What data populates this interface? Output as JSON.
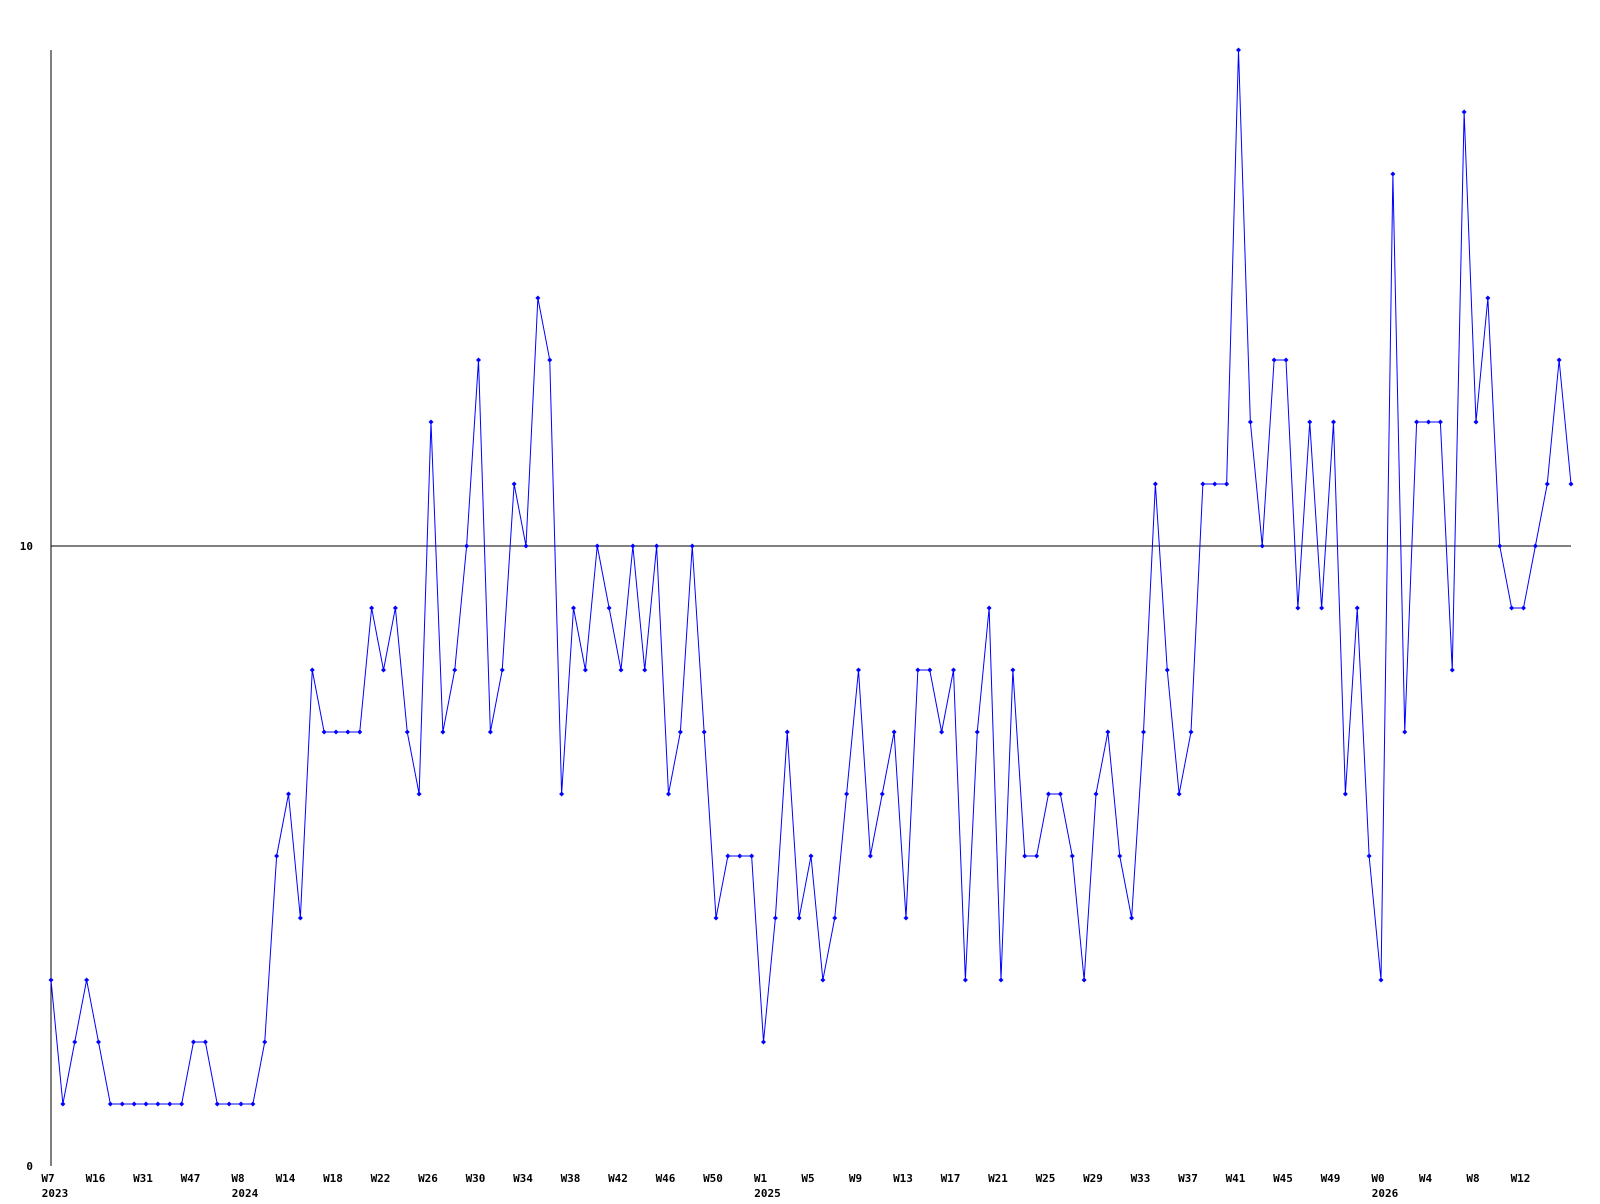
{
  "chart_data": {
    "type": "line",
    "categories": [
      "W7",
      null,
      null,
      null,
      "W16",
      null,
      null,
      null,
      "W31",
      null,
      null,
      null,
      "W47",
      null,
      null,
      null,
      "W8",
      null,
      null,
      null,
      "W14",
      null,
      null,
      null,
      "W18",
      null,
      null,
      null,
      "W22",
      null,
      null,
      null,
      "W26",
      null,
      null,
      null,
      "W30",
      null,
      null,
      null,
      "W34",
      null,
      null,
      null,
      "W38",
      null,
      null,
      null,
      "W42",
      null,
      null,
      null,
      "W46",
      null,
      null,
      null,
      "W50",
      null,
      null,
      null,
      "W1",
      null,
      null,
      null,
      "W5",
      null,
      null,
      null,
      "W9",
      null,
      null,
      null,
      "W13",
      null,
      null,
      null,
      "W17",
      null,
      null,
      null,
      "W21",
      null,
      null,
      null,
      "W25",
      null,
      null,
      null,
      "W29",
      null,
      null,
      null,
      "W33",
      null,
      null,
      null,
      "W37",
      null,
      null,
      null,
      "W41",
      null,
      null,
      null,
      "W45",
      null,
      null,
      null,
      "W49",
      null,
      null,
      null,
      "W0",
      null,
      null,
      null,
      "W4",
      null,
      null,
      null,
      "W8",
      null,
      null,
      null,
      "W12",
      null,
      null,
      null,
      null
    ],
    "year_labels": [
      "2023",
      null,
      null,
      null,
      null,
      null,
      null,
      null,
      null,
      null,
      null,
      null,
      null,
      null,
      null,
      null,
      "2024",
      null,
      null,
      null,
      null,
      null,
      null,
      null,
      null,
      null,
      null,
      null,
      null,
      null,
      null,
      null,
      null,
      null,
      null,
      null,
      null,
      null,
      null,
      null,
      null,
      null,
      null,
      null,
      null,
      null,
      null,
      null,
      null,
      null,
      null,
      null,
      null,
      null,
      null,
      null,
      null,
      null,
      null,
      null,
      "2025",
      null,
      null,
      null,
      null,
      null,
      null,
      null,
      null,
      null,
      null,
      null,
      null,
      null,
      null,
      null,
      null,
      null,
      null,
      null,
      null,
      null,
      null,
      null,
      null,
      null,
      null,
      null,
      null,
      null,
      null,
      null,
      null,
      null,
      null,
      null,
      null,
      null,
      null,
      null,
      null,
      null,
      null,
      null,
      null,
      null,
      null,
      null,
      null,
      null,
      null,
      null,
      "2026",
      null,
      null,
      null,
      null,
      null,
      null,
      null,
      null,
      null,
      null,
      null,
      null,
      null,
      null,
      null,
      null
    ],
    "values": [
      3,
      1,
      2,
      3,
      2,
      1,
      1,
      1,
      1,
      1,
      1,
      1,
      2,
      2,
      1,
      1,
      1,
      1,
      2,
      5,
      6,
      4,
      8,
      7,
      7,
      7,
      7,
      9,
      8,
      9,
      7,
      6,
      12,
      7,
      8,
      10,
      13,
      7,
      8,
      11,
      10,
      14,
      13,
      6,
      9,
      8,
      10,
      9,
      8,
      10,
      8,
      10,
      6,
      7,
      10,
      7,
      4,
      5,
      5,
      5,
      2,
      4,
      7,
      4,
      5,
      3,
      4,
      6,
      8,
      5,
      6,
      7,
      4,
      8,
      8,
      7,
      8,
      3,
      7,
      9,
      3,
      8,
      5,
      5,
      6,
      6,
      5,
      3,
      6,
      7,
      5,
      4,
      7,
      11,
      8,
      6,
      7,
      11,
      11,
      11,
      18,
      12,
      10,
      13,
      13,
      9,
      12,
      9,
      12,
      6,
      9,
      5,
      3,
      16,
      7,
      12,
      12,
      12,
      8,
      17,
      12,
      14,
      10,
      9,
      9,
      10,
      11,
      13,
      11
    ],
    "color": "#0000ff",
    "ylim": [
      0,
      18
    ],
    "yticks": [
      0,
      10
    ],
    "grid": true
  }
}
